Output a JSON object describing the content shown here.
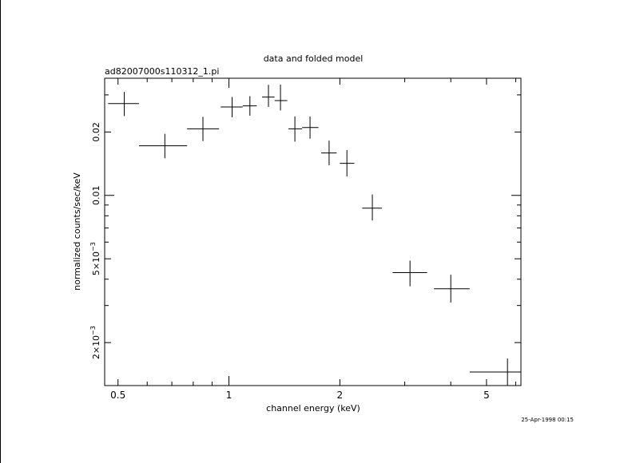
{
  "chart_data": {
    "type": "scatter",
    "title": "data and folded model",
    "subtitle": "ad82007000s110312_1.pi",
    "xlabel": "channel energy (keV)",
    "ylabel": "normalized counts/sec/keV",
    "timestamp": "25-Apr-1998 00:15",
    "xscale": "log",
    "yscale": "log",
    "xlim": [
      0.46,
      6.2
    ],
    "ylim": [
      0.00125,
      0.036
    ],
    "x_tick_labels": [
      {
        "value": 0.5,
        "label": "0.5"
      },
      {
        "value": 1,
        "label": "1"
      },
      {
        "value": 2,
        "label": "2"
      },
      {
        "value": 5,
        "label": "5"
      }
    ],
    "y_tick_labels": [
      {
        "value": 0.02,
        "label": "0.02"
      },
      {
        "value": 0.01,
        "label": "0.01"
      },
      {
        "value": 0.005,
        "label": "5×10",
        "exp": "−3"
      },
      {
        "value": 0.002,
        "label": "2×10",
        "exp": "−3"
      }
    ],
    "series": [
      {
        "points": [
          {
            "x": 0.52,
            "xlo": 0.47,
            "xhi": 0.57,
            "y": 0.0273,
            "ylo": 0.0238,
            "yhi": 0.031
          },
          {
            "x": 0.67,
            "xlo": 0.57,
            "xhi": 0.77,
            "y": 0.0172,
            "ylo": 0.015,
            "yhi": 0.0196
          },
          {
            "x": 0.85,
            "xlo": 0.77,
            "xhi": 0.94,
            "y": 0.0207,
            "ylo": 0.0181,
            "yhi": 0.0236
          },
          {
            "x": 1.02,
            "xlo": 0.95,
            "xhi": 1.09,
            "y": 0.0263,
            "ylo": 0.0235,
            "yhi": 0.0293
          },
          {
            "x": 1.14,
            "xlo": 1.09,
            "xhi": 1.19,
            "y": 0.0266,
            "ylo": 0.0239,
            "yhi": 0.0296
          },
          {
            "x": 1.28,
            "xlo": 1.23,
            "xhi": 1.33,
            "y": 0.0293,
            "ylo": 0.0263,
            "yhi": 0.0335
          },
          {
            "x": 1.38,
            "xlo": 1.33,
            "xhi": 1.44,
            "y": 0.0282,
            "ylo": 0.0253,
            "yhi": 0.0336
          },
          {
            "x": 1.51,
            "xlo": 1.45,
            "xhi": 1.58,
            "y": 0.0207,
            "ylo": 0.018,
            "yhi": 0.0237
          },
          {
            "x": 1.66,
            "xlo": 1.58,
            "xhi": 1.75,
            "y": 0.021,
            "ylo": 0.0186,
            "yhi": 0.0237
          },
          {
            "x": 1.87,
            "xlo": 1.78,
            "xhi": 1.96,
            "y": 0.0159,
            "ylo": 0.0139,
            "yhi": 0.0182
          },
          {
            "x": 2.09,
            "xlo": 2.0,
            "xhi": 2.19,
            "y": 0.0142,
            "ylo": 0.0123,
            "yhi": 0.0164
          },
          {
            "x": 2.45,
            "xlo": 2.3,
            "xhi": 2.6,
            "y": 0.0087,
            "ylo": 0.0076,
            "yhi": 0.0101
          },
          {
            "x": 3.1,
            "xlo": 2.78,
            "xhi": 3.45,
            "y": 0.0043,
            "ylo": 0.0037,
            "yhi": 0.0049
          },
          {
            "x": 4.0,
            "xlo": 3.6,
            "xhi": 4.5,
            "y": 0.0036,
            "ylo": 0.0031,
            "yhi": 0.0042
          },
          {
            "x": 5.7,
            "xlo": 4.5,
            "xhi": 6.2,
            "y": 0.00145,
            "ylo": 0.00125,
            "yhi": 0.00168
          }
        ]
      }
    ],
    "grid": false,
    "legend": "none"
  }
}
